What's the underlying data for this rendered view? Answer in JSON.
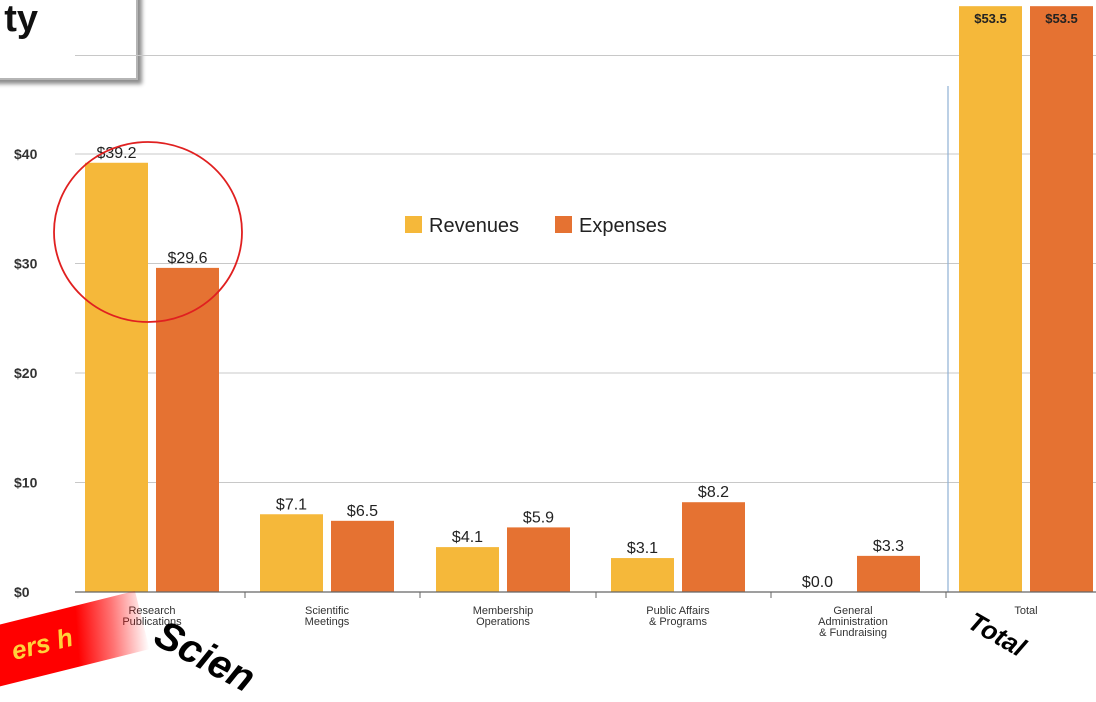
{
  "header": {
    "title_fragment": "ty"
  },
  "chart_data": {
    "type": "bar",
    "title": "",
    "xlabel": "",
    "ylabel": "",
    "ylim": [
      0,
      55
    ],
    "yticks": [
      0,
      10,
      20,
      30,
      40
    ],
    "ytick_labels": [
      "$0",
      "$10",
      "$20",
      "$30",
      "$40"
    ],
    "categories": [
      [
        "Research",
        "Publications"
      ],
      [
        "Scientific",
        "Meetings"
      ],
      [
        "Membership",
        "Operations"
      ],
      [
        "Public Affairs",
        "& Programs"
      ],
      [
        "General",
        "Administration",
        "& Fundraising"
      ],
      [
        "Total"
      ]
    ],
    "series": [
      {
        "name": "Revenues",
        "color": "#f5b83a",
        "values": [
          39.2,
          7.1,
          4.1,
          3.1,
          0.0,
          53.5
        ],
        "labels": [
          "$39.2",
          "$7.1",
          "$4.1",
          "$3.1",
          "$0.0",
          "$53.5"
        ]
      },
      {
        "name": "Expenses",
        "color": "#e57232",
        "values": [
          29.6,
          6.5,
          5.9,
          8.2,
          3.3,
          53.5
        ],
        "labels": [
          "$29.6",
          "$6.5",
          "$5.9",
          "$8.2",
          "$3.3",
          "$53.5"
        ]
      }
    ],
    "grid": true,
    "legend": "top-center",
    "highlight": "Research Publications"
  },
  "annotations": {
    "science_word": "Scien",
    "total_word": "Total",
    "corner_text": "ers h"
  }
}
